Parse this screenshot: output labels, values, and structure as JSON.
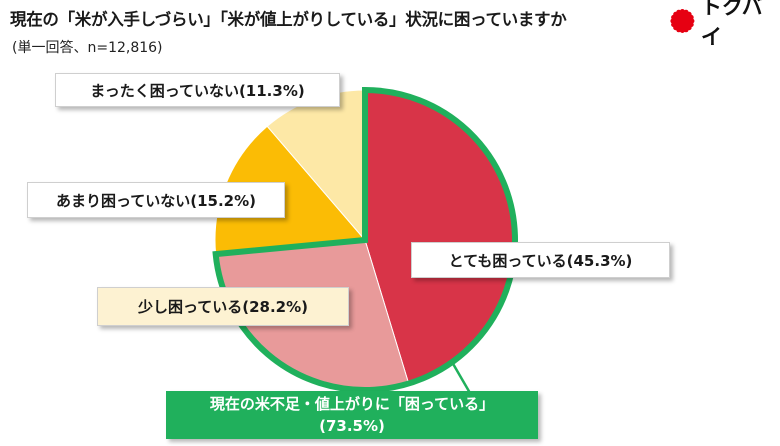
{
  "title": "現在の「米が入手しづらい」「米が値上がりしている」状況に困っていますか",
  "subtitle": "(単一回答、n=12,816)",
  "logo": {
    "text": "トクバイ",
    "icon": "red-sunburst-icon",
    "color": "#e60012"
  },
  "chart_data": {
    "type": "pie",
    "title": "現在の「米が入手しづらい」「米が値上がりしている」状況に困っていますか",
    "slices": [
      {
        "label": "とても困っている(45.3%)",
        "value": 45.3,
        "color": "#d83448"
      },
      {
        "label": "少し困っている(28.2%)",
        "value": 28.2,
        "color": "#e89a9a"
      },
      {
        "label": "あまり困っていない(15.2%)",
        "value": 15.2,
        "color": "#fbbc05"
      },
      {
        "label": "まったく困っていない(11.3%)",
        "value": 11.3,
        "color": "#fde8a6"
      }
    ],
    "highlight": {
      "label_line1": "現在の米不足・値上がりに「困っている」",
      "label_line2": "(73.5%)",
      "value": 73.5,
      "color": "#20b05c"
    }
  }
}
